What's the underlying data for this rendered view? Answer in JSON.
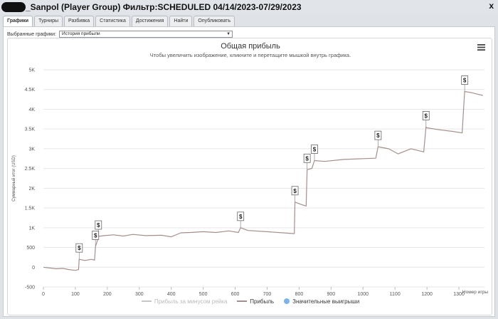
{
  "window": {
    "title": "_Sanpol (Player Group) Фильтр:SCHEDULED 04/14/2023-07/29/2023",
    "close_label": "x"
  },
  "tabs": [
    {
      "label": "Графики",
      "active": true
    },
    {
      "label": "Турниры",
      "active": false
    },
    {
      "label": "Разбивка",
      "active": false
    },
    {
      "label": "Статистика",
      "active": false
    },
    {
      "label": "Достижения",
      "active": false
    },
    {
      "label": "Найти",
      "active": false
    },
    {
      "label": "Опубликовать",
      "active": false
    }
  ],
  "selector": {
    "label": "Выбранные графики:",
    "value": "История прибыли"
  },
  "menu_icon": "hamburger-menu-icon",
  "colors": {
    "profit_line": "#a58f8c",
    "allin_line": "#c7c7c7",
    "big_win_marker": "#7cb5ec",
    "grid": "#e6e6e6"
  },
  "chart_data": {
    "type": "line",
    "title": "Общая прибыль",
    "subtitle": "Чтобы увеличить изображение, кликните и перетащите мышкой внутрь графика.",
    "xlabel": "Номер игры",
    "ylabel": "Суммарный итог (USD)",
    "xlim": [
      0,
      1380
    ],
    "ylim": [
      -500,
      5000
    ],
    "xticks": [
      0,
      100,
      200,
      300,
      400,
      500,
      600,
      700,
      800,
      900,
      1000,
      1100,
      1200,
      1300
    ],
    "yticks": [
      -500,
      0,
      500,
      1000,
      1500,
      2000,
      2500,
      3000,
      3500,
      4000,
      4500,
      5000
    ],
    "ytick_labels": [
      "-500",
      "0",
      "500",
      "1K",
      "1.5K",
      "2K",
      "2.5K",
      "3K",
      "3.5K",
      "4K",
      "4.5K",
      "5K"
    ],
    "grid": true,
    "legend_position": "bottom",
    "legend": [
      "Прибыль за минусом рейка",
      "Прибыль",
      "Значительные выигрыши"
    ],
    "series": [
      {
        "name": "Прибыль",
        "x": [
          0,
          20,
          40,
          60,
          80,
          100,
          110,
          112,
          130,
          150,
          160,
          163,
          168,
          172,
          190,
          220,
          250,
          280,
          320,
          370,
          400,
          430,
          460,
          500,
          540,
          580,
          610,
          617,
          640,
          700,
          750,
          785,
          787,
          810,
          822,
          825,
          840,
          848,
          880,
          940,
          1000,
          1040,
          1047,
          1080,
          1110,
          1150,
          1190,
          1197,
          1200,
          1240,
          1280,
          1310,
          1318,
          1340,
          1360,
          1375
        ],
        "y": [
          0,
          -20,
          -40,
          -30,
          -60,
          -80,
          -60,
          200,
          170,
          200,
          180,
          520,
          650,
          780,
          800,
          820,
          790,
          830,
          800,
          810,
          770,
          870,
          880,
          900,
          880,
          920,
          880,
          1000,
          930,
          900,
          870,
          850,
          1650,
          1580,
          1550,
          2470,
          2500,
          2700,
          2680,
          2730,
          2750,
          2760,
          3050,
          3000,
          2870,
          3000,
          2920,
          3550,
          3530,
          3480,
          3440,
          3400,
          4450,
          4420,
          4380,
          4350
        ]
      }
    ],
    "big_wins": [
      {
        "x": 112,
        "label": "$"
      },
      {
        "x": 163,
        "label": "$"
      },
      {
        "x": 172,
        "label": "$"
      },
      {
        "x": 617,
        "label": "$"
      },
      {
        "x": 787,
        "label": "$"
      },
      {
        "x": 825,
        "label": "$"
      },
      {
        "x": 848,
        "label": "$"
      },
      {
        "x": 1047,
        "label": "$"
      },
      {
        "x": 1197,
        "label": "$"
      },
      {
        "x": 1318,
        "label": "$"
      }
    ]
  }
}
